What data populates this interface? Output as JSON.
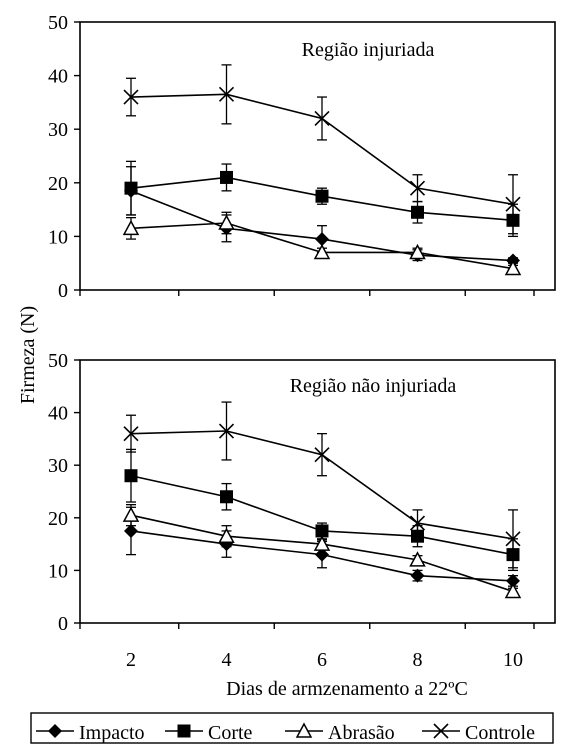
{
  "figure": {
    "ylabel": "Firmeza (N)",
    "xlabel": "Dias de armzenamento a 22ºC",
    "x_ticks": [
      "2",
      "4",
      "6",
      "8",
      "10"
    ],
    "y_ticks": [
      "0",
      "10",
      "20",
      "30",
      "40",
      "50"
    ],
    "legend": [
      "Impacto",
      "Corte",
      "Abrasão",
      "Controle"
    ]
  },
  "chart_data": [
    {
      "type": "line",
      "title": "Região injuriada",
      "xlabel": "",
      "ylabel": "Firmeza (N)",
      "x": [
        2,
        4,
        6,
        8,
        10
      ],
      "ylim": [
        0,
        50
      ],
      "grid": false,
      "series": [
        {
          "name": "Impacto",
          "marker": "diamond",
          "values": [
            18.5,
            11.5,
            9.5,
            6.5,
            5.5
          ],
          "errors": [
            4.5,
            2.5,
            2.5,
            1.0,
            0.5
          ]
        },
        {
          "name": "Corte",
          "marker": "square",
          "values": [
            19.0,
            21.0,
            17.5,
            14.5,
            13.0
          ],
          "errors": [
            5.0,
            2.5,
            1.5,
            2.0,
            3.0
          ]
        },
        {
          "name": "Abrasão",
          "marker": "triangle-open",
          "values": [
            11.5,
            12.5,
            7.0,
            7.0,
            4.0
          ],
          "errors": [
            2.0,
            2.0,
            0.8,
            0.8,
            0.6
          ]
        },
        {
          "name": "Controle",
          "marker": "x",
          "values": [
            36.0,
            36.5,
            32.0,
            19.0,
            16.0
          ],
          "errors": [
            3.5,
            5.5,
            4.0,
            2.5,
            5.5
          ]
        }
      ]
    },
    {
      "type": "line",
      "title": "Região não injuriada",
      "xlabel": "Dias de armzenamento a 22ºC",
      "ylabel": "Firmeza (N)",
      "x": [
        2,
        4,
        6,
        8,
        10
      ],
      "ylim": [
        0,
        50
      ],
      "grid": false,
      "series": [
        {
          "name": "Impacto",
          "marker": "diamond",
          "values": [
            17.5,
            15.0,
            13.0,
            9.0,
            8.0
          ],
          "errors": [
            4.5,
            2.5,
            2.5,
            1.0,
            1.0
          ]
        },
        {
          "name": "Corte",
          "marker": "square",
          "values": [
            28.0,
            24.0,
            17.5,
            16.5,
            13.0
          ],
          "errors": [
            5.0,
            2.5,
            1.5,
            2.0,
            3.0
          ]
        },
        {
          "name": "Abrasão",
          "marker": "triangle-open",
          "values": [
            20.5,
            16.5,
            15.0,
            12.0,
            6.0
          ],
          "errors": [
            2.0,
            2.0,
            0.8,
            0.8,
            0.6
          ]
        },
        {
          "name": "Controle",
          "marker": "x",
          "values": [
            36.0,
            36.5,
            32.0,
            19.0,
            16.0
          ],
          "errors": [
            3.5,
            5.5,
            4.0,
            2.5,
            5.5
          ]
        }
      ]
    }
  ]
}
